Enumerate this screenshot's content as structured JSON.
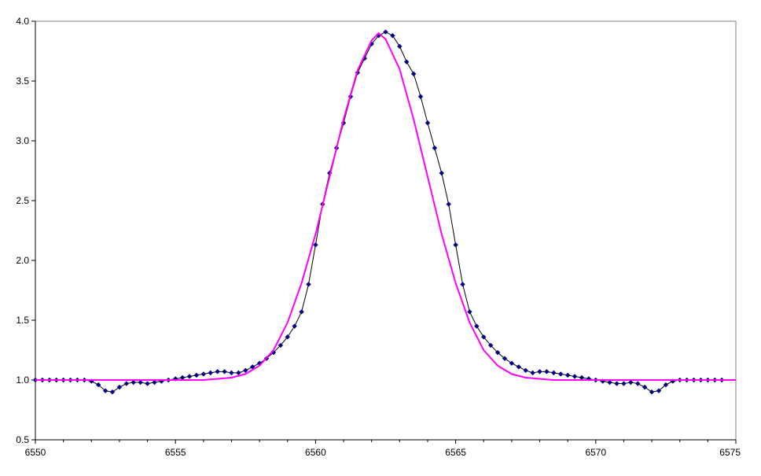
{
  "chart_data": {
    "type": "line",
    "title": "",
    "xlabel": "",
    "ylabel": "",
    "xlim": [
      6550,
      6575
    ],
    "ylim": [
      0.5,
      4.0
    ],
    "xticks": [
      6550,
      6555,
      6560,
      6565,
      6570,
      6575
    ],
    "xtick_labels": [
      "6550",
      "6555",
      "6560",
      "6565",
      "6570",
      "6575"
    ],
    "yticks": [
      0.5,
      1.0,
      1.5,
      2.0,
      2.5,
      3.0,
      3.5,
      4.0
    ],
    "ytick_labels": [
      "0.5",
      "1.0",
      "1.5",
      "2.0",
      "2.5",
      "3.0",
      "3.5",
      "4.0"
    ],
    "grid": false,
    "legend": "none",
    "series": [
      {
        "type": "line-markers",
        "color": "#000080",
        "line_color": "#000000",
        "marker": "diamond",
        "x": [
          6550.0,
          6550.25,
          6550.5,
          6550.75,
          6551.0,
          6551.25,
          6551.5,
          6551.75,
          6552.0,
          6552.25,
          6552.5,
          6552.75,
          6553.0,
          6553.25,
          6553.5,
          6553.75,
          6554.0,
          6554.25,
          6554.5,
          6554.75,
          6555.0,
          6555.25,
          6555.5,
          6555.75,
          6556.0,
          6556.25,
          6556.5,
          6556.75,
          6557.0,
          6557.25,
          6557.5,
          6557.75,
          6558.0,
          6558.25,
          6558.5,
          6558.75,
          6559.0,
          6559.25,
          6559.5,
          6559.75,
          6560.0,
          6560.25,
          6560.5,
          6560.75,
          6561.0,
          6561.25,
          6561.5,
          6561.75,
          6562.0,
          6562.25,
          6562.5,
          6562.75,
          6563.0,
          6563.25,
          6563.5,
          6563.75,
          6564.0,
          6564.25,
          6564.5,
          6564.75,
          6565.0,
          6565.25,
          6565.5,
          6565.75,
          6566.0,
          6566.25,
          6566.5,
          6566.75,
          6567.0,
          6567.25,
          6567.5,
          6567.75,
          6568.0,
          6568.25,
          6568.5,
          6568.75,
          6569.0,
          6569.25,
          6569.5,
          6569.75,
          6570.0,
          6570.25,
          6570.5,
          6570.75,
          6571.0,
          6571.25,
          6571.5,
          6571.75,
          6572.0,
          6572.25,
          6572.5,
          6572.75,
          6573.0,
          6573.25,
          6573.5,
          6573.75,
          6574.0,
          6574.25,
          6574.5
        ],
        "y": [
          1.0,
          1.0,
          1.0,
          1.0,
          1.0,
          1.0,
          1.0,
          1.0,
          0.99,
          0.96,
          0.91,
          0.9,
          0.94,
          0.97,
          0.98,
          0.98,
          0.97,
          0.98,
          0.99,
          1.0,
          1.01,
          1.02,
          1.03,
          1.04,
          1.05,
          1.06,
          1.07,
          1.07,
          1.06,
          1.06,
          1.08,
          1.11,
          1.14,
          1.18,
          1.23,
          1.29,
          1.36,
          1.45,
          1.57,
          1.8,
          2.13,
          2.47,
          2.73,
          2.94,
          3.15,
          3.37,
          3.57,
          3.69,
          3.81,
          3.88,
          3.91,
          3.88,
          3.79,
          3.66,
          3.56,
          3.37,
          3.15,
          2.94,
          2.73,
          2.47,
          2.13,
          1.8,
          1.57,
          1.45,
          1.36,
          1.29,
          1.23,
          1.18,
          1.14,
          1.11,
          1.08,
          1.06,
          1.07,
          1.07,
          1.06,
          1.05,
          1.04,
          1.03,
          1.02,
          1.01,
          1.0,
          0.99,
          0.98,
          0.97,
          0.97,
          0.98,
          0.97,
          0.94,
          0.9,
          0.91,
          0.96,
          0.99,
          1.0,
          1.0,
          1.0,
          1.0,
          1.0,
          1.0,
          1.0
        ]
      },
      {
        "type": "line",
        "color": "#ff00ff",
        "x": [
          6550.0,
          6552.0,
          6554.0,
          6555.0,
          6555.5,
          6556.0,
          6556.5,
          6557.0,
          6557.5,
          6558.0,
          6558.5,
          6559.0,
          6559.5,
          6560.0,
          6560.5,
          6561.0,
          6561.5,
          6562.0,
          6562.25,
          6562.5,
          6563.0,
          6563.5,
          6564.0,
          6564.5,
          6565.0,
          6565.5,
          6566.0,
          6566.5,
          6567.0,
          6567.5,
          6568.0,
          6568.5,
          6569.0,
          6570.0,
          6572.0,
          6575.0
        ],
        "y": [
          1.0,
          1.0,
          1.0,
          1.0,
          1.0,
          1.0,
          1.01,
          1.02,
          1.05,
          1.12,
          1.25,
          1.48,
          1.81,
          2.22,
          2.7,
          3.18,
          3.59,
          3.84,
          3.9,
          3.85,
          3.6,
          3.18,
          2.7,
          2.22,
          1.81,
          1.48,
          1.25,
          1.12,
          1.05,
          1.02,
          1.01,
          1.0,
          1.0,
          1.0,
          1.0,
          1.0
        ]
      }
    ]
  }
}
